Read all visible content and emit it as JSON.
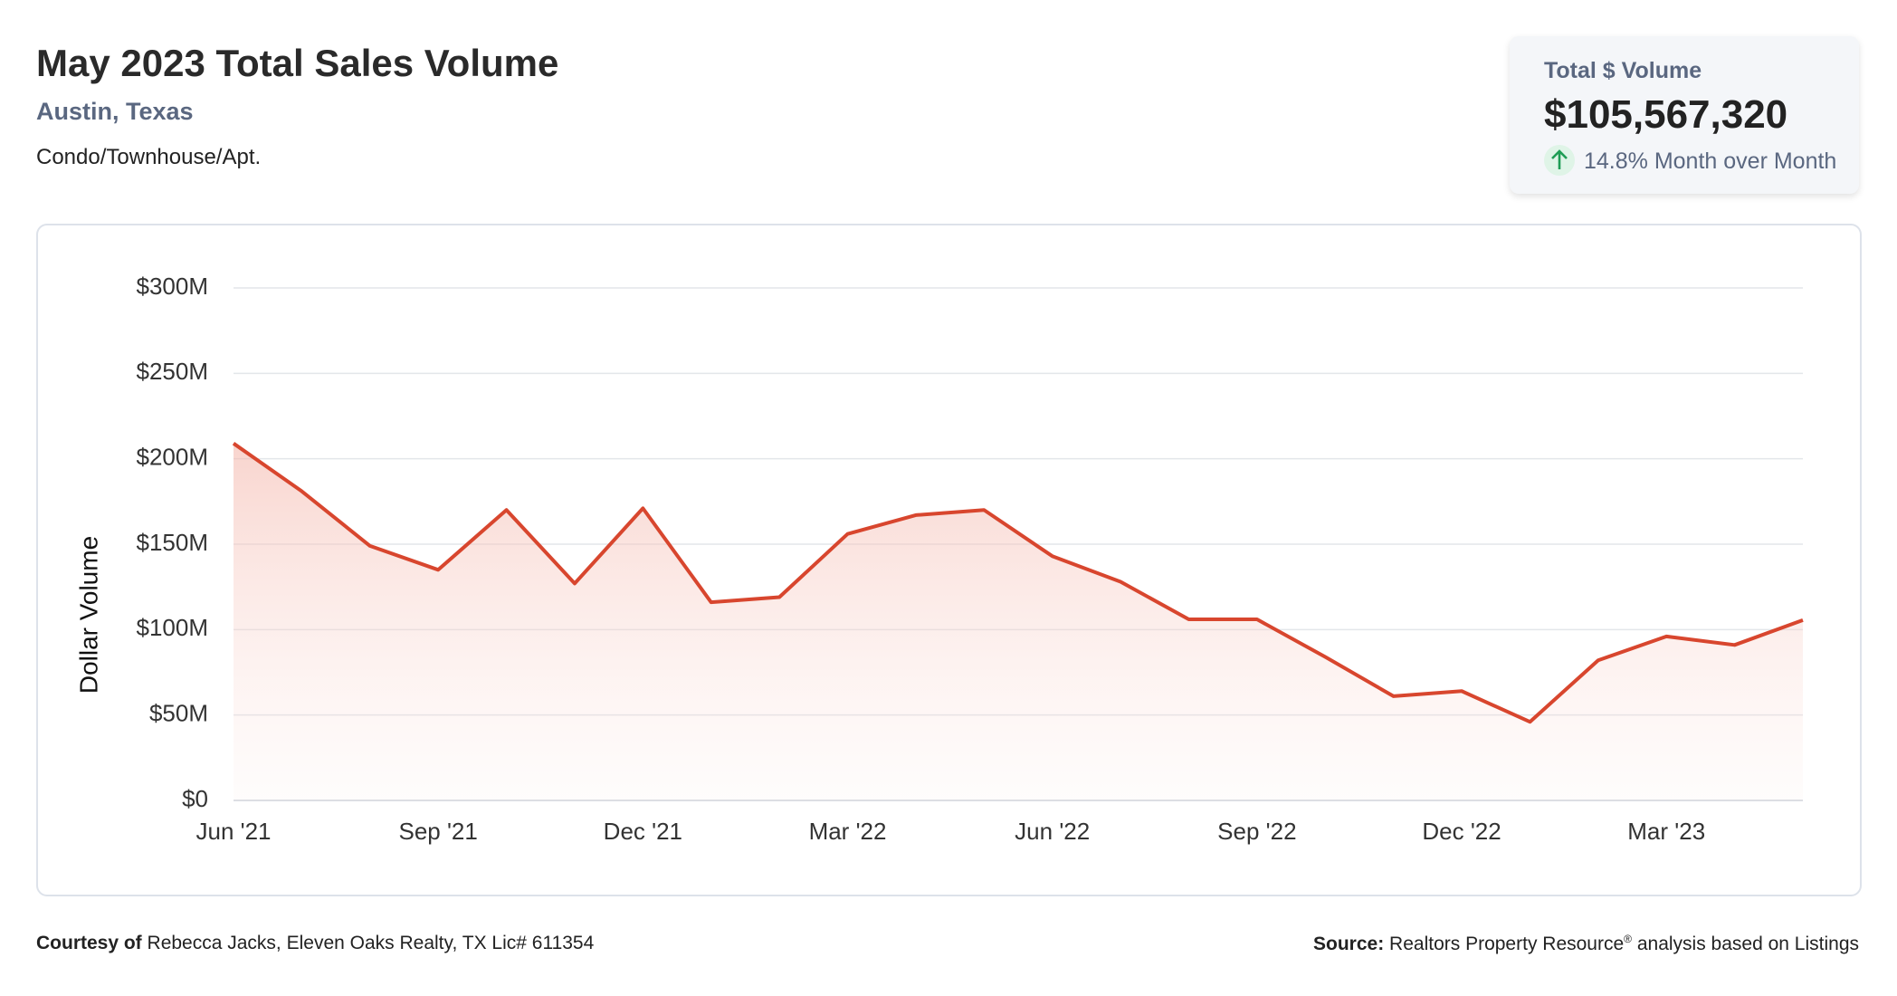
{
  "header": {
    "title": "May 2023 Total Sales Volume",
    "location": "Austin, Texas",
    "property_type": "Condo/Townhouse/Apt."
  },
  "card": {
    "label": "Total $ Volume",
    "value": "$105,567,320",
    "change": "14.8% Month over Month"
  },
  "footer": {
    "courtesy_label": "Courtesy of",
    "courtesy": "Rebecca Jacks, Eleven Oaks Realty, TX Lic# 611354",
    "source_label": "Source:",
    "source": "Realtors Property Resource",
    "source_mark": "®",
    "source_tail": "analysis based on Listings"
  },
  "chart_data": {
    "type": "line",
    "y_label": "Dollar Volume",
    "categories": [
      "Jun '21",
      null,
      null,
      "Sep '21",
      null,
      null,
      "Dec '21",
      null,
      null,
      "Mar '22",
      null,
      null,
      "Jun '22",
      null,
      null,
      "Sep '22",
      null,
      null,
      "Dec '22",
      null,
      null,
      "Mar '23",
      null,
      null
    ],
    "series": [
      {
        "name": "Total $ Volume",
        "color": "#d8462e",
        "values": [
          209000000,
          181000000,
          149000000,
          135000000,
          170000000,
          127000000,
          171000000,
          116000000,
          119000000,
          156000000,
          167000000,
          170000000,
          143000000,
          128000000,
          106000000,
          106000000,
          84000000,
          61000000,
          64000000,
          46000000,
          82000000,
          96000000,
          91000000,
          105567320
        ]
      }
    ],
    "ylim": [
      0,
      300000000
    ],
    "yticks": [
      {
        "value": 0,
        "label": "$0"
      },
      {
        "value": 50000000,
        "label": "$50M"
      },
      {
        "value": 100000000,
        "label": "$100M"
      },
      {
        "value": 150000000,
        "label": "$150M"
      },
      {
        "value": 200000000,
        "label": "$200M"
      },
      {
        "value": 250000000,
        "label": "$250M"
      },
      {
        "value": 300000000,
        "label": "$300M"
      }
    ],
    "grid": true
  }
}
